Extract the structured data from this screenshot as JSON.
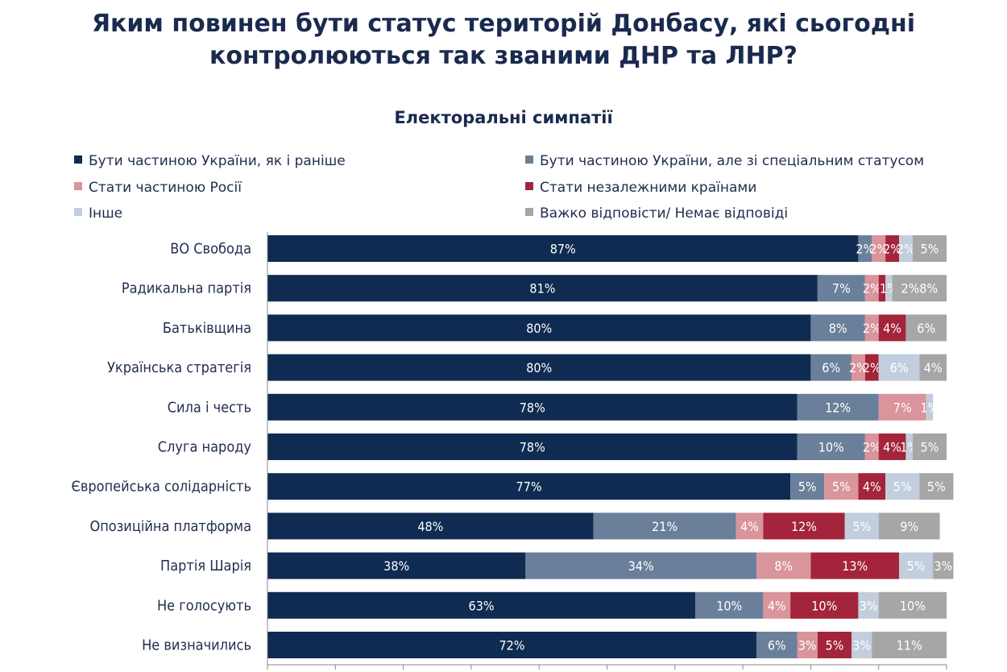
{
  "title_line1": "Яким повинен бути статус територій Донбасу, які сьогодні",
  "title_line2": "контролюються так званими ДНР та ЛНР?",
  "chart_data": {
    "type": "bar",
    "orientation": "horizontal",
    "stacked": true,
    "title": "Електоральні симпатії",
    "xlim": [
      0,
      100
    ],
    "legend_placement": "top",
    "categories": [
      "ВО Свобода",
      "Радикальна партія",
      "Батьківщина",
      "Українська стратегія",
      "Сила і честь",
      "Слуга народу",
      "Європейська солідарність",
      "Опозиційна платформа",
      "Партія Шарія",
      "Не голосують",
      "Не визначились"
    ],
    "series": [
      {
        "name": "Бути частиною України, як і раніше",
        "color": "#0f2b51",
        "values": [
          87,
          81,
          80,
          80,
          78,
          78,
          77,
          48,
          38,
          63,
          72
        ]
      },
      {
        "name": "Бути частиною України, але зі спеціальним статусом",
        "color": "#6a7f9a",
        "values": [
          2,
          7,
          8,
          6,
          12,
          10,
          5,
          21,
          34,
          10,
          6
        ]
      },
      {
        "name": "Стати частиною Росії",
        "color": "#d9949c",
        "values": [
          2,
          2,
          2,
          2,
          7,
          2,
          5,
          4,
          8,
          4,
          3
        ]
      },
      {
        "name": "Стати незалежними країнами",
        "color": "#a3243b",
        "values": [
          2,
          1,
          4,
          2,
          0,
          4,
          4,
          12,
          13,
          10,
          5
        ]
      },
      {
        "name": "Інше",
        "color": "#c2cedd",
        "values": [
          2,
          1,
          0,
          6,
          1,
          1,
          5,
          5,
          5,
          3,
          3
        ]
      },
      {
        "name": "Важко відповісти/ Немає відповіді",
        "color": "#a6a6a6",
        "values": [
          5,
          8,
          6,
          4,
          0,
          5,
          5,
          9,
          3,
          10,
          11
        ]
      }
    ],
    "data_labels": [
      [
        "87%",
        "2%",
        "2%",
        "2%",
        "2%",
        "5%"
      ],
      [
        "81%",
        "7%",
        "2%",
        "",
        "1%",
        "2%8%"
      ],
      [
        "80%",
        "8%",
        "2%",
        "4%",
        "",
        "6%"
      ],
      [
        "80%",
        "6%",
        "2%",
        "2%",
        "6%",
        "4%"
      ],
      [
        "78%",
        "12%",
        "7%",
        "",
        "1%",
        ""
      ],
      [
        "78%",
        "10%",
        "2%",
        "4%",
        "1%",
        "5%"
      ],
      [
        "77%",
        "5%",
        "5%",
        "4%",
        "5%",
        "5%"
      ],
      [
        "48%",
        "21%",
        "4%",
        "12%",
        "5%",
        "9%"
      ],
      [
        "38%",
        "34%",
        "8%",
        "13%",
        "5%",
        "3%"
      ],
      [
        "63%",
        "10%",
        "4%",
        "10%",
        "3%",
        "10%"
      ],
      [
        "72%",
        "6%",
        "3%",
        "5%",
        "3%",
        "11%"
      ]
    ]
  }
}
